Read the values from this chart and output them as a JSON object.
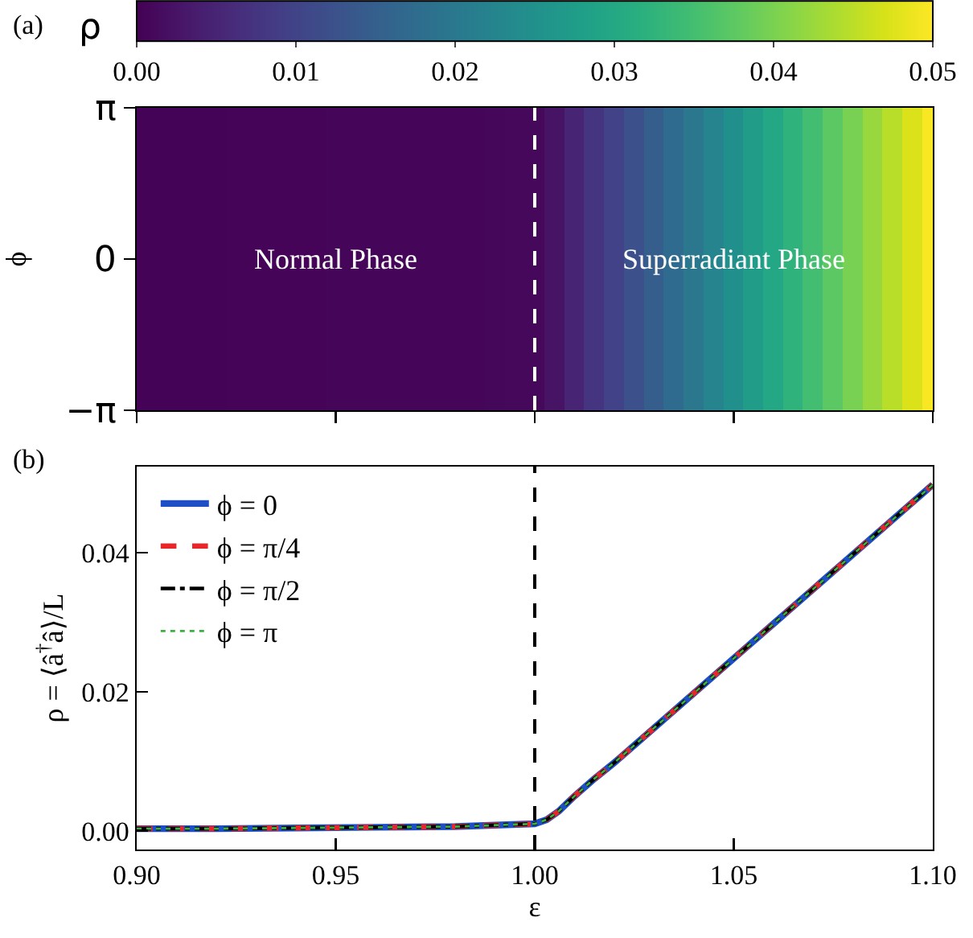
{
  "chart_data": [
    {
      "type": "heatmap",
      "clabel": "ρ",
      "ylabel": "ϕ",
      "x": [
        0.9,
        0.905,
        0.91,
        0.915,
        0.92,
        0.925,
        0.93,
        0.935,
        0.94,
        0.945,
        0.95,
        0.955,
        0.96,
        0.965,
        0.97,
        0.975,
        0.98,
        0.985,
        0.99,
        0.995,
        1.0,
        1.005,
        1.01,
        1.015,
        1.02,
        1.025,
        1.03,
        1.035,
        1.04,
        1.045,
        1.05,
        1.055,
        1.06,
        1.065,
        1.07,
        1.075,
        1.08,
        1.085,
        1.09,
        1.095,
        1.1
      ],
      "cells": [
        [
          0.0003,
          0.0003,
          0.0003,
          0.0003,
          0.0003,
          0.0004,
          0.0004,
          0.0004,
          0.0004,
          0.0004,
          0.0005,
          0.0005,
          0.0005,
          0.0005,
          0.0006,
          0.0006,
          0.0006,
          0.0007,
          0.0008,
          0.0009,
          0.001,
          0.0024,
          0.005,
          0.0075,
          0.0098,
          0.0123,
          0.0148,
          0.0173,
          0.0198,
          0.0223,
          0.0248,
          0.0273,
          0.0298,
          0.0323,
          0.0348,
          0.0373,
          0.0398,
          0.0423,
          0.0448,
          0.0473,
          0.0498
        ]
      ],
      "clim": [
        0,
        0.05
      ],
      "cticks": [
        {
          "value": 0,
          "label": "0.00"
        },
        0.01,
        0.02,
        0.03,
        0.04,
        0.05
      ],
      "xlim": [
        0.9,
        1.1
      ],
      "xticks": [
        0.9,
        0.95,
        1.0,
        1.05,
        1.1
      ],
      "ylim": [
        -3.1416,
        3.1416
      ],
      "yticks": [
        {
          "value": -3.1416,
          "label": "−π"
        },
        0,
        {
          "value": 3.1416,
          "label": "π"
        }
      ],
      "tick_labels": "y",
      "ref_lines": [
        {
          "axis": "x",
          "value": 1.0,
          "color": "#ffffff",
          "line_style": "dashed"
        }
      ],
      "annotations": [
        "(a)",
        "Normal Phase",
        "Superradiant Phase"
      ]
    },
    {
      "type": "line",
      "xlabel": "ε",
      "ylabel": "ρ = ⟨â$^{†}$â⟩/L",
      "x": [
        0.9,
        0.92,
        0.94,
        0.96,
        0.98,
        0.99,
        1.0,
        1.003,
        1.006,
        1.01,
        1.015,
        1.02,
        1.03,
        1.04,
        1.05,
        1.06,
        1.07,
        1.08,
        1.09,
        1.1
      ],
      "series": [
        {
          "name": "ϕ = 0",
          "color": "#1f4fc4",
          "line_style": "solid",
          "values": [
            0.0003,
            0.0003,
            0.0004,
            0.0005,
            0.0006,
            0.0008,
            0.001,
            0.0016,
            0.0028,
            0.005,
            0.0075,
            0.0098,
            0.0148,
            0.0198,
            0.0248,
            0.0298,
            0.0348,
            0.0398,
            0.0448,
            0.0498
          ]
        },
        {
          "name": "ϕ = π/4",
          "color": "#e8262a",
          "line_style": "dashed",
          "values": [
            0.0003,
            0.0003,
            0.0004,
            0.0005,
            0.0006,
            0.0008,
            0.001,
            0.0016,
            0.0028,
            0.005,
            0.0075,
            0.0098,
            0.0148,
            0.0198,
            0.0248,
            0.0298,
            0.0348,
            0.0398,
            0.0448,
            0.0498
          ]
        },
        {
          "name": "ϕ = π/2",
          "color": "#000000",
          "line_style": "dashdot",
          "values": [
            0.0003,
            0.0003,
            0.0004,
            0.0005,
            0.0006,
            0.0008,
            0.001,
            0.0016,
            0.0028,
            0.005,
            0.0075,
            0.0098,
            0.0148,
            0.0198,
            0.0248,
            0.0298,
            0.0348,
            0.0398,
            0.0448,
            0.0498
          ]
        },
        {
          "name": "ϕ = π",
          "color": "#3cb043",
          "line_style": "dotted",
          "values": [
            0.0003,
            0.0003,
            0.0004,
            0.0005,
            0.0006,
            0.0008,
            0.001,
            0.0016,
            0.0028,
            0.005,
            0.0075,
            0.0098,
            0.0148,
            0.0198,
            0.0248,
            0.0298,
            0.0348,
            0.0398,
            0.0448,
            0.0498
          ]
        }
      ],
      "xlim": [
        0.9,
        1.1
      ],
      "xticks": [
        {
          "value": 0.9,
          "label": "0.90"
        },
        0.95,
        {
          "value": 1.0,
          "label": "1.00"
        },
        1.05,
        {
          "value": 1.1,
          "label": "1.10"
        }
      ],
      "ylim": [
        -0.0027,
        0.0524
      ],
      "yticks": [
        {
          "value": 0,
          "label": "0.00"
        },
        {
          "value": 0.02,
          "label": "0.02"
        },
        {
          "value": 0.04,
          "label": "0.04"
        }
      ],
      "legend": "top left",
      "ref_lines": [
        {
          "axis": "x",
          "value": 1.0,
          "color": "#000000",
          "line_style": "dashed"
        }
      ],
      "annotations": [
        "(b)"
      ]
    }
  ]
}
